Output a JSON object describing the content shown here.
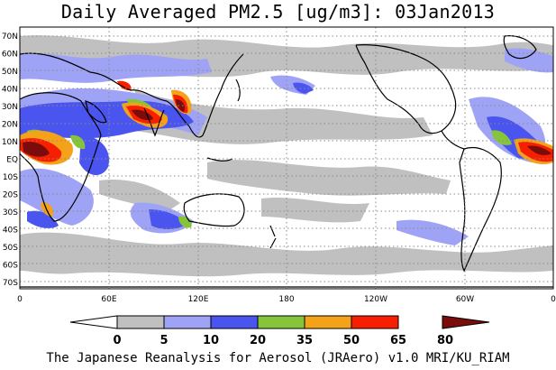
{
  "title": "Daily Averaged PM2.5 [ug/m3]: 03Jan2013",
  "credit": "The Japanese Reanalysis for Aerosol (JRAero) v1.0 MRI/KU_RIAM",
  "lat_labels": [
    "70N",
    "60N",
    "50N",
    "40N",
    "30N",
    "20N",
    "10N",
    "EQ",
    "10S",
    "20S",
    "30S",
    "40S",
    "50S",
    "60S",
    "70S"
  ],
  "lon_labels": [
    "0",
    "60E",
    "120E",
    "180",
    "120W",
    "60W",
    "0"
  ],
  "legend": {
    "ticks": [
      "0",
      "5",
      "10",
      "20",
      "35",
      "50",
      "65",
      "80"
    ],
    "colors": [
      "#ffffff",
      "#c0c0c0",
      "#9fa3f5",
      "#4a55ef",
      "#85c43b",
      "#f4a21a",
      "#f71f00",
      "#7a0c0c"
    ]
  }
}
